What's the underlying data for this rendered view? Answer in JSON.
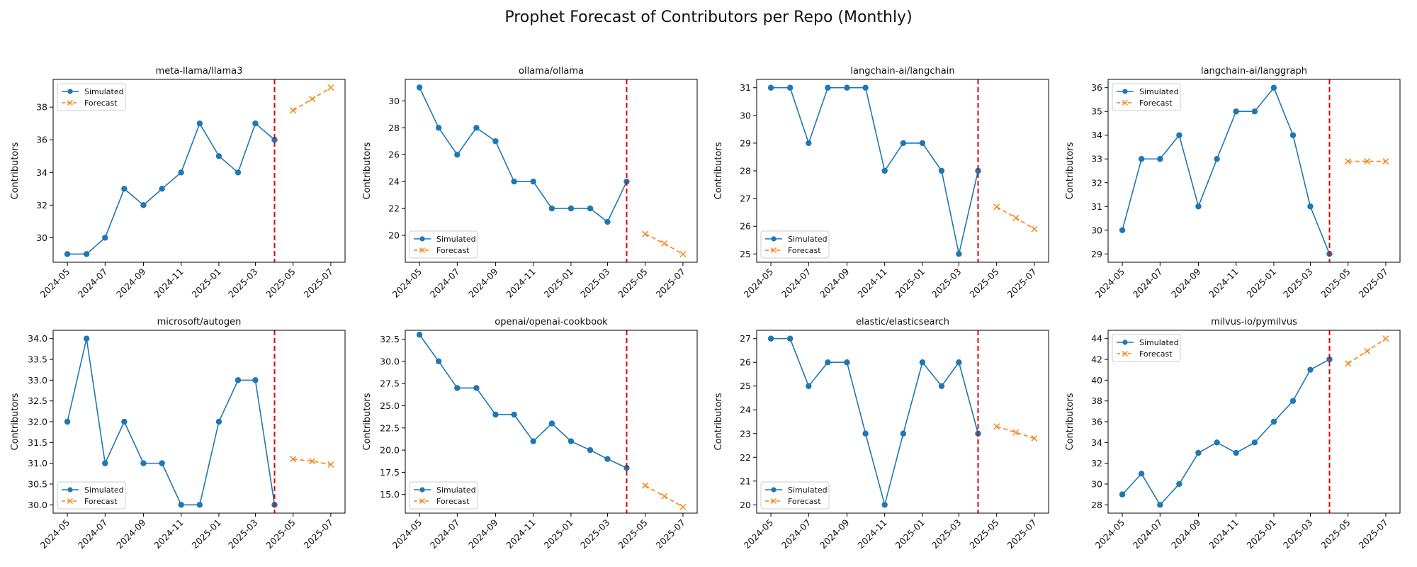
{
  "figure": {
    "title": "Prophet Forecast of Contributors per Repo (Monthly)"
  },
  "colors": {
    "simulated": "#1f77b4",
    "forecast": "#ff7f0e",
    "cutoff": "#e00000"
  },
  "chart_data": [
    {
      "type": "line",
      "title": "meta-llama/llama3",
      "ylabel": "Contributors",
      "ylim": [
        28.5,
        39.7
      ],
      "yticks": [
        30,
        32,
        34,
        36,
        38
      ],
      "xticks": [
        "2024-05",
        "2024-07",
        "2024-09",
        "2024-11",
        "2025-01",
        "2025-03",
        "2025-05",
        "2025-07"
      ],
      "xlim": [
        "2024-04-08",
        "2025-07-24"
      ],
      "cutoff": "2025-04",
      "legend": "upper left",
      "series": [
        {
          "name": "Simulated",
          "marker": "o",
          "x": [
            "2024-05",
            "2024-06",
            "2024-07",
            "2024-08",
            "2024-09",
            "2024-10",
            "2024-11",
            "2024-12",
            "2025-01",
            "2025-02",
            "2025-03",
            "2025-04"
          ],
          "y": [
            29,
            29,
            30,
            33,
            32,
            33,
            34,
            37,
            35,
            34,
            37,
            36
          ]
        },
        {
          "name": "Forecast",
          "marker": "x",
          "x": [
            "2025-05",
            "2025-06",
            "2025-07"
          ],
          "y": [
            37.8,
            38.5,
            39.2
          ]
        }
      ]
    },
    {
      "type": "line",
      "title": "ollama/ollama",
      "ylabel": "Contributors",
      "ylim": [
        18.0,
        31.6
      ],
      "yticks": [
        20,
        22,
        24,
        26,
        28,
        30
      ],
      "xticks": [
        "2024-05",
        "2024-07",
        "2024-09",
        "2024-11",
        "2025-01",
        "2025-03",
        "2025-05",
        "2025-07"
      ],
      "xlim": [
        "2024-04-08",
        "2025-07-24"
      ],
      "cutoff": "2025-04",
      "legend": "lower left",
      "series": [
        {
          "name": "Simulated",
          "marker": "o",
          "x": [
            "2024-05",
            "2024-06",
            "2024-07",
            "2024-08",
            "2024-09",
            "2024-10",
            "2024-11",
            "2024-12",
            "2025-01",
            "2025-02",
            "2025-03",
            "2025-04"
          ],
          "y": [
            31,
            28,
            26,
            28,
            27,
            24,
            24,
            22,
            22,
            22,
            21,
            24
          ]
        },
        {
          "name": "Forecast",
          "marker": "x",
          "x": [
            "2025-05",
            "2025-06",
            "2025-07"
          ],
          "y": [
            20.1,
            19.4,
            18.6
          ]
        }
      ]
    },
    {
      "type": "line",
      "title": "langchain-ai/langchain",
      "ylabel": "Contributors",
      "ylim": [
        24.7,
        31.3
      ],
      "yticks": [
        25,
        26,
        27,
        28,
        29,
        30,
        31
      ],
      "xticks": [
        "2024-05",
        "2024-07",
        "2024-09",
        "2024-11",
        "2025-01",
        "2025-03",
        "2025-05",
        "2025-07"
      ],
      "xlim": [
        "2024-04-08",
        "2025-07-24"
      ],
      "cutoff": "2025-04",
      "legend": "lower left",
      "series": [
        {
          "name": "Simulated",
          "marker": "o",
          "x": [
            "2024-05",
            "2024-06",
            "2024-07",
            "2024-08",
            "2024-09",
            "2024-10",
            "2024-11",
            "2024-12",
            "2025-01",
            "2025-02",
            "2025-03",
            "2025-04"
          ],
          "y": [
            31,
            31,
            29,
            31,
            31,
            31,
            28,
            29,
            29,
            28,
            25,
            28
          ]
        },
        {
          "name": "Forecast",
          "marker": "x",
          "x": [
            "2025-05",
            "2025-06",
            "2025-07"
          ],
          "y": [
            26.7,
            26.3,
            25.9
          ]
        }
      ]
    },
    {
      "type": "line",
      "title": "langchain-ai/langgraph",
      "ylabel": "Contributors",
      "ylim": [
        28.65,
        36.35
      ],
      "yticks": [
        29,
        30,
        31,
        32,
        33,
        34,
        35,
        36
      ],
      "xticks": [
        "2024-05",
        "2024-07",
        "2024-09",
        "2024-11",
        "2025-01",
        "2025-03",
        "2025-05",
        "2025-07"
      ],
      "xlim": [
        "2024-04-08",
        "2025-07-24"
      ],
      "cutoff": "2025-04",
      "legend": "upper left",
      "series": [
        {
          "name": "Simulated",
          "marker": "o",
          "x": [
            "2024-05",
            "2024-06",
            "2024-07",
            "2024-08",
            "2024-09",
            "2024-10",
            "2024-11",
            "2024-12",
            "2025-01",
            "2025-02",
            "2025-03",
            "2025-04"
          ],
          "y": [
            30,
            33,
            33,
            34,
            31,
            33,
            35,
            35,
            36,
            34,
            31,
            29
          ]
        },
        {
          "name": "Forecast",
          "marker": "x",
          "x": [
            "2025-05",
            "2025-06",
            "2025-07"
          ],
          "y": [
            32.9,
            32.9,
            32.9
          ]
        }
      ]
    },
    {
      "type": "line",
      "title": "microsoft/autogen",
      "ylabel": "Contributors",
      "ylim": [
        29.8,
        34.2
      ],
      "yticks": [
        30.0,
        30.5,
        31.0,
        31.5,
        32.0,
        32.5,
        33.0,
        33.5,
        34.0
      ],
      "ytick_labels": [
        "30.0",
        "30.5",
        "31.0",
        "31.5",
        "32.0",
        "32.5",
        "33.0",
        "33.5",
        "34.0"
      ],
      "xticks": [
        "2024-05",
        "2024-07",
        "2024-09",
        "2024-11",
        "2025-01",
        "2025-03",
        "2025-05",
        "2025-07"
      ],
      "xlim": [
        "2024-04-08",
        "2025-07-24"
      ],
      "cutoff": "2025-04",
      "legend": "lower left",
      "series": [
        {
          "name": "Simulated",
          "marker": "o",
          "x": [
            "2024-05",
            "2024-06",
            "2024-07",
            "2024-08",
            "2024-09",
            "2024-10",
            "2024-11",
            "2024-12",
            "2025-01",
            "2025-02",
            "2025-03",
            "2025-04"
          ],
          "y": [
            32,
            34,
            31,
            32,
            31,
            31,
            30,
            30,
            32,
            33,
            33,
            30
          ]
        },
        {
          "name": "Forecast",
          "marker": "x",
          "x": [
            "2025-05",
            "2025-06",
            "2025-07"
          ],
          "y": [
            31.1,
            31.05,
            30.97
          ]
        }
      ]
    },
    {
      "type": "line",
      "title": "openai/openai-cookbook",
      "ylabel": "Contributors",
      "ylim": [
        12.9,
        33.5
      ],
      "yticks": [
        15.0,
        17.5,
        20.0,
        22.5,
        25.0,
        27.5,
        30.0,
        32.5
      ],
      "ytick_labels": [
        "15.0",
        "17.5",
        "20.0",
        "22.5",
        "25.0",
        "27.5",
        "30.0",
        "32.5"
      ],
      "xticks": [
        "2024-05",
        "2024-07",
        "2024-09",
        "2024-11",
        "2025-01",
        "2025-03",
        "2025-05",
        "2025-07"
      ],
      "xlim": [
        "2024-04-08",
        "2025-07-24"
      ],
      "cutoff": "2025-04",
      "legend": "lower left",
      "series": [
        {
          "name": "Simulated",
          "marker": "o",
          "x": [
            "2024-05",
            "2024-06",
            "2024-07",
            "2024-08",
            "2024-09",
            "2024-10",
            "2024-11",
            "2024-12",
            "2025-01",
            "2025-02",
            "2025-03",
            "2025-04"
          ],
          "y": [
            33,
            30,
            27,
            27,
            24,
            24,
            21,
            23,
            21,
            20,
            19,
            18
          ]
        },
        {
          "name": "Forecast",
          "marker": "x",
          "x": [
            "2025-05",
            "2025-06",
            "2025-07"
          ],
          "y": [
            16.0,
            14.8,
            13.6
          ]
        }
      ]
    },
    {
      "type": "line",
      "title": "elastic/elasticsearch",
      "ylabel": "Contributors",
      "ylim": [
        19.65,
        27.35
      ],
      "yticks": [
        20,
        21,
        22,
        23,
        24,
        25,
        26,
        27
      ],
      "xticks": [
        "2024-05",
        "2024-07",
        "2024-09",
        "2024-11",
        "2025-01",
        "2025-03",
        "2025-05",
        "2025-07"
      ],
      "xlim": [
        "2024-04-08",
        "2025-07-24"
      ],
      "cutoff": "2025-04",
      "legend": "lower left",
      "series": [
        {
          "name": "Simulated",
          "marker": "o",
          "x": [
            "2024-05",
            "2024-06",
            "2024-07",
            "2024-08",
            "2024-09",
            "2024-10",
            "2024-11",
            "2024-12",
            "2025-01",
            "2025-02",
            "2025-03",
            "2025-04"
          ],
          "y": [
            27,
            27,
            25,
            26,
            26,
            23,
            20,
            23,
            26,
            25,
            26,
            23
          ]
        },
        {
          "name": "Forecast",
          "marker": "x",
          "x": [
            "2025-05",
            "2025-06",
            "2025-07"
          ],
          "y": [
            23.3,
            23.05,
            22.8
          ]
        }
      ]
    },
    {
      "type": "line",
      "title": "milvus-io/pymilvus",
      "ylabel": "Contributors",
      "ylim": [
        27.2,
        44.8
      ],
      "yticks": [
        28,
        30,
        32,
        34,
        36,
        38,
        40,
        42,
        44
      ],
      "xticks": [
        "2024-05",
        "2024-07",
        "2024-09",
        "2024-11",
        "2025-01",
        "2025-03",
        "2025-05",
        "2025-07"
      ],
      "xlim": [
        "2024-04-08",
        "2025-07-24"
      ],
      "cutoff": "2025-04",
      "legend": "upper left",
      "series": [
        {
          "name": "Simulated",
          "marker": "o",
          "x": [
            "2024-05",
            "2024-06",
            "2024-07",
            "2024-08",
            "2024-09",
            "2024-10",
            "2024-11",
            "2024-12",
            "2025-01",
            "2025-02",
            "2025-03",
            "2025-04"
          ],
          "y": [
            29,
            31,
            28,
            30,
            33,
            34,
            33,
            34,
            36,
            38,
            41,
            42
          ]
        },
        {
          "name": "Forecast",
          "marker": "x",
          "x": [
            "2025-05",
            "2025-06",
            "2025-07"
          ],
          "y": [
            41.6,
            42.8,
            44.0
          ]
        }
      ]
    }
  ]
}
